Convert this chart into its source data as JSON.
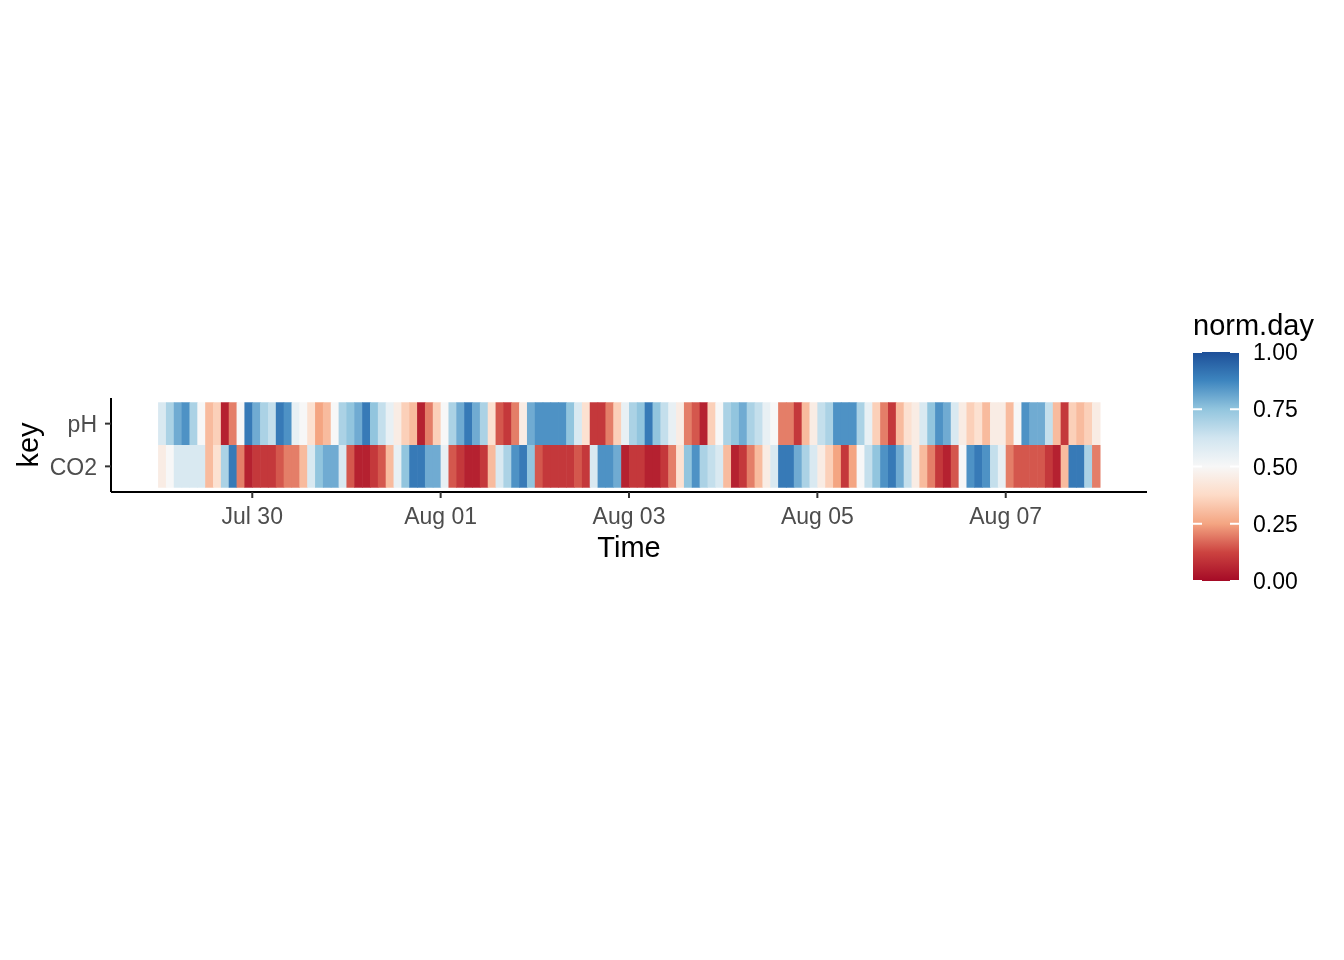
{
  "chart_data": {
    "type": "heatmap",
    "xlabel": "Time",
    "ylabel": "key",
    "clabel": "norm.day",
    "x": [
      "--07-29T01:00",
      "--07-29T03:00",
      "--07-29T05:00",
      "--07-29T07:00",
      "--07-29T09:00",
      "--07-29T11:00",
      "--07-29T13:00",
      "--07-29T15:00",
      "--07-29T17:00",
      "--07-29T19:00",
      "--07-29T21:00",
      "--07-29T23:00",
      "--07-30T01:00",
      "--07-30T03:00",
      "--07-30T05:00",
      "--07-30T07:00",
      "--07-30T09:00",
      "--07-30T11:00",
      "--07-30T13:00",
      "--07-30T15:00",
      "--07-30T17:00",
      "--07-30T19:00",
      "--07-30T21:00",
      "--07-30T23:00",
      "--07-31T01:00",
      "--07-31T03:00",
      "--07-31T05:00",
      "--07-31T07:00",
      "--07-31T09:00",
      "--07-31T11:00",
      "--07-31T13:00",
      "--07-31T15:00",
      "--07-31T17:00",
      "--07-31T19:00",
      "--07-31T21:00",
      "--07-31T23:00",
      "--08-01T01:00",
      "--08-01T03:00",
      "--08-01T05:00",
      "--08-01T07:00",
      "--08-01T09:00",
      "--08-01T11:00",
      "--08-01T13:00",
      "--08-01T15:00",
      "--08-01T17:00",
      "--08-01T19:00",
      "--08-01T21:00",
      "--08-01T23:00",
      "--08-02T01:00",
      "--08-02T03:00",
      "--08-02T05:00",
      "--08-02T07:00",
      "--08-02T09:00",
      "--08-02T11:00",
      "--08-02T13:00",
      "--08-02T15:00",
      "--08-02T17:00",
      "--08-02T19:00",
      "--08-02T21:00",
      "--08-02T23:00",
      "--08-03T01:00",
      "--08-03T03:00",
      "--08-03T05:00",
      "--08-03T07:00",
      "--08-03T09:00",
      "--08-03T11:00",
      "--08-03T13:00",
      "--08-03T15:00",
      "--08-03T17:00",
      "--08-03T19:00",
      "--08-03T21:00",
      "--08-03T23:00",
      "--08-04T01:00",
      "--08-04T03:00",
      "--08-04T05:00",
      "--08-04T07:00",
      "--08-04T09:00",
      "--08-04T11:00",
      "--08-04T13:00",
      "--08-04T15:00",
      "--08-04T17:00",
      "--08-04T19:00",
      "--08-04T21:00",
      "--08-04T23:00",
      "--08-05T01:00",
      "--08-05T03:00",
      "--08-05T05:00",
      "--08-05T07:00",
      "--08-05T09:00",
      "--08-05T11:00",
      "--08-05T13:00",
      "--08-05T15:00",
      "--08-05T17:00",
      "--08-05T19:00",
      "--08-05T21:00",
      "--08-05T23:00",
      "--08-06T01:00",
      "--08-06T03:00",
      "--08-06T05:00",
      "--08-06T07:00",
      "--08-06T09:00",
      "--08-06T11:00",
      "--08-06T13:00",
      "--08-06T15:00",
      "--08-06T17:00",
      "--08-06T19:00",
      "--08-06T21:00",
      "--08-06T23:00",
      "--08-07T01:00",
      "--08-07T03:00",
      "--08-07T05:00",
      "--08-07T07:00",
      "--08-07T09:00",
      "--08-07T11:00",
      "--08-07T13:00",
      "--08-07T15:00",
      "--08-07T17:00",
      "--08-07T19:00",
      "--08-07T21:00",
      "--08-07T23:00"
    ],
    "y_categories": [
      "pH",
      "CO2"
    ],
    "cells": [
      [
        0.6,
        0.7,
        0.8,
        0.85,
        0.7,
        0.5,
        0.3,
        0.35,
        0.05,
        0.2,
        0.5,
        0.9,
        0.8,
        0.7,
        0.65,
        0.9,
        0.85,
        0.55,
        0.5,
        0.4,
        0.25,
        0.3,
        0.5,
        0.7,
        0.75,
        0.8,
        0.9,
        0.75,
        0.65,
        0.55,
        0.45,
        0.35,
        0.3,
        0.05,
        0.2,
        0.35,
        0.5,
        0.7,
        0.8,
        0.9,
        0.8,
        0.7,
        0.4,
        0.15,
        0.1,
        0.2,
        0.45,
        0.8,
        0.85,
        0.85,
        0.85,
        0.85,
        0.75,
        0.6,
        0.4,
        0.1,
        0.1,
        0.2,
        0.35,
        0.55,
        0.7,
        0.75,
        0.9,
        0.75,
        0.65,
        0.55,
        0.45,
        0.2,
        0.15,
        0.05,
        0.35,
        0.5,
        0.7,
        0.75,
        0.8,
        0.7,
        0.65,
        0.55,
        0.5,
        0.2,
        0.2,
        0.1,
        0.3,
        0.45,
        0.65,
        0.7,
        0.85,
        0.85,
        0.85,
        0.7,
        0.55,
        0.35,
        0.2,
        0.1,
        0.3,
        0.4,
        0.45,
        0.6,
        0.75,
        0.85,
        0.8,
        0.6,
        0.45,
        0.35,
        0.4,
        0.3,
        0.45,
        0.45,
        0.3,
        0.5,
        0.85,
        0.8,
        0.8,
        0.65,
        0.3,
        0.1,
        0.35,
        0.3,
        0.35,
        0.45
      ],
      [
        0.45,
        0.5,
        0.6,
        0.6,
        0.6,
        0.6,
        0.3,
        0.4,
        0.7,
        0.9,
        0.2,
        0.05,
        0.1,
        0.1,
        0.1,
        0.15,
        0.2,
        0.2,
        0.3,
        0.6,
        0.75,
        0.8,
        0.8,
        0.6,
        0.15,
        0.05,
        0.05,
        0.1,
        0.15,
        0.3,
        0.55,
        0.75,
        0.9,
        0.9,
        0.8,
        0.8,
        0.55,
        0.15,
        0.1,
        0.05,
        0.05,
        0.1,
        0.3,
        0.6,
        0.7,
        0.85,
        0.9,
        0.75,
        0.15,
        0.1,
        0.1,
        0.1,
        0.1,
        0.15,
        0.1,
        0.6,
        0.85,
        0.85,
        0.8,
        0.05,
        0.1,
        0.1,
        0.05,
        0.05,
        0.1,
        0.2,
        0.4,
        0.75,
        0.85,
        0.7,
        0.65,
        0.6,
        0.3,
        0.05,
        0.1,
        0.2,
        0.3,
        0.45,
        0.6,
        0.9,
        0.9,
        0.8,
        0.7,
        0.6,
        0.45,
        0.35,
        0.25,
        0.1,
        0.25,
        0.5,
        0.65,
        0.75,
        0.85,
        0.9,
        0.8,
        0.65,
        0.45,
        0.3,
        0.2,
        0.1,
        0.05,
        0.15,
        0.5,
        0.85,
        0.9,
        0.85,
        0.65,
        0.55,
        0.2,
        0.15,
        0.15,
        0.15,
        0.15,
        0.1,
        0.05,
        0.3,
        0.9,
        0.9,
        0.7,
        0.2
      ]
    ],
    "xlim": [
      "--07-28T12:00",
      "--08-08T12:00"
    ],
    "xticks": [
      {
        "value": "--07-30",
        "label": "Jul 30"
      },
      {
        "value": "--08-01",
        "label": "Aug 01"
      },
      {
        "value": "--08-03",
        "label": "Aug 03"
      },
      {
        "value": "--08-05",
        "label": "Aug 05"
      },
      {
        "value": "--08-07",
        "label": "Aug 07"
      }
    ],
    "clim": [
      0,
      1
    ],
    "cticks": [
      {
        "value": 0,
        "label": "0.00"
      },
      {
        "value": 0.25,
        "label": "0.25"
      },
      {
        "value": 0.5,
        "label": "0.50"
      },
      {
        "value": 0.75,
        "label": "0.75"
      },
      {
        "value": 1,
        "label": "1.00"
      }
    ]
  }
}
